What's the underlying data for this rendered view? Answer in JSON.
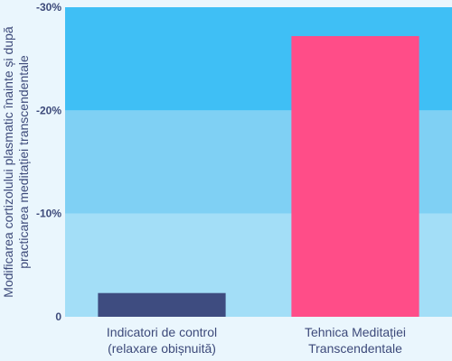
{
  "chart_data": {
    "type": "bar",
    "title": "",
    "ylabel_lines": [
      "Modificarea cortizolului plasmatic înainte și după",
      "practicarea meditației transcendentale"
    ],
    "ylim": [
      0,
      -30
    ],
    "ticks": [
      {
        "value": 0,
        "label": "0"
      },
      {
        "value": -10,
        "label": "-10%"
      },
      {
        "value": -20,
        "label": "-20%"
      },
      {
        "value": -30,
        "label": "-30%"
      }
    ],
    "categories": [
      [
        "Indicatori de control",
        "(relaxare obișnuită)"
      ],
      [
        "Tehnica Meditației",
        "Transcendentale"
      ]
    ],
    "values": [
      -2.3,
      -27.2
    ],
    "bar_colors": [
      "#3e4c80",
      "#ff4d88"
    ],
    "band_colors": [
      "#a3def7",
      "#7fd0f4",
      "#3fbff5"
    ],
    "grid": false,
    "legend": "none"
  }
}
